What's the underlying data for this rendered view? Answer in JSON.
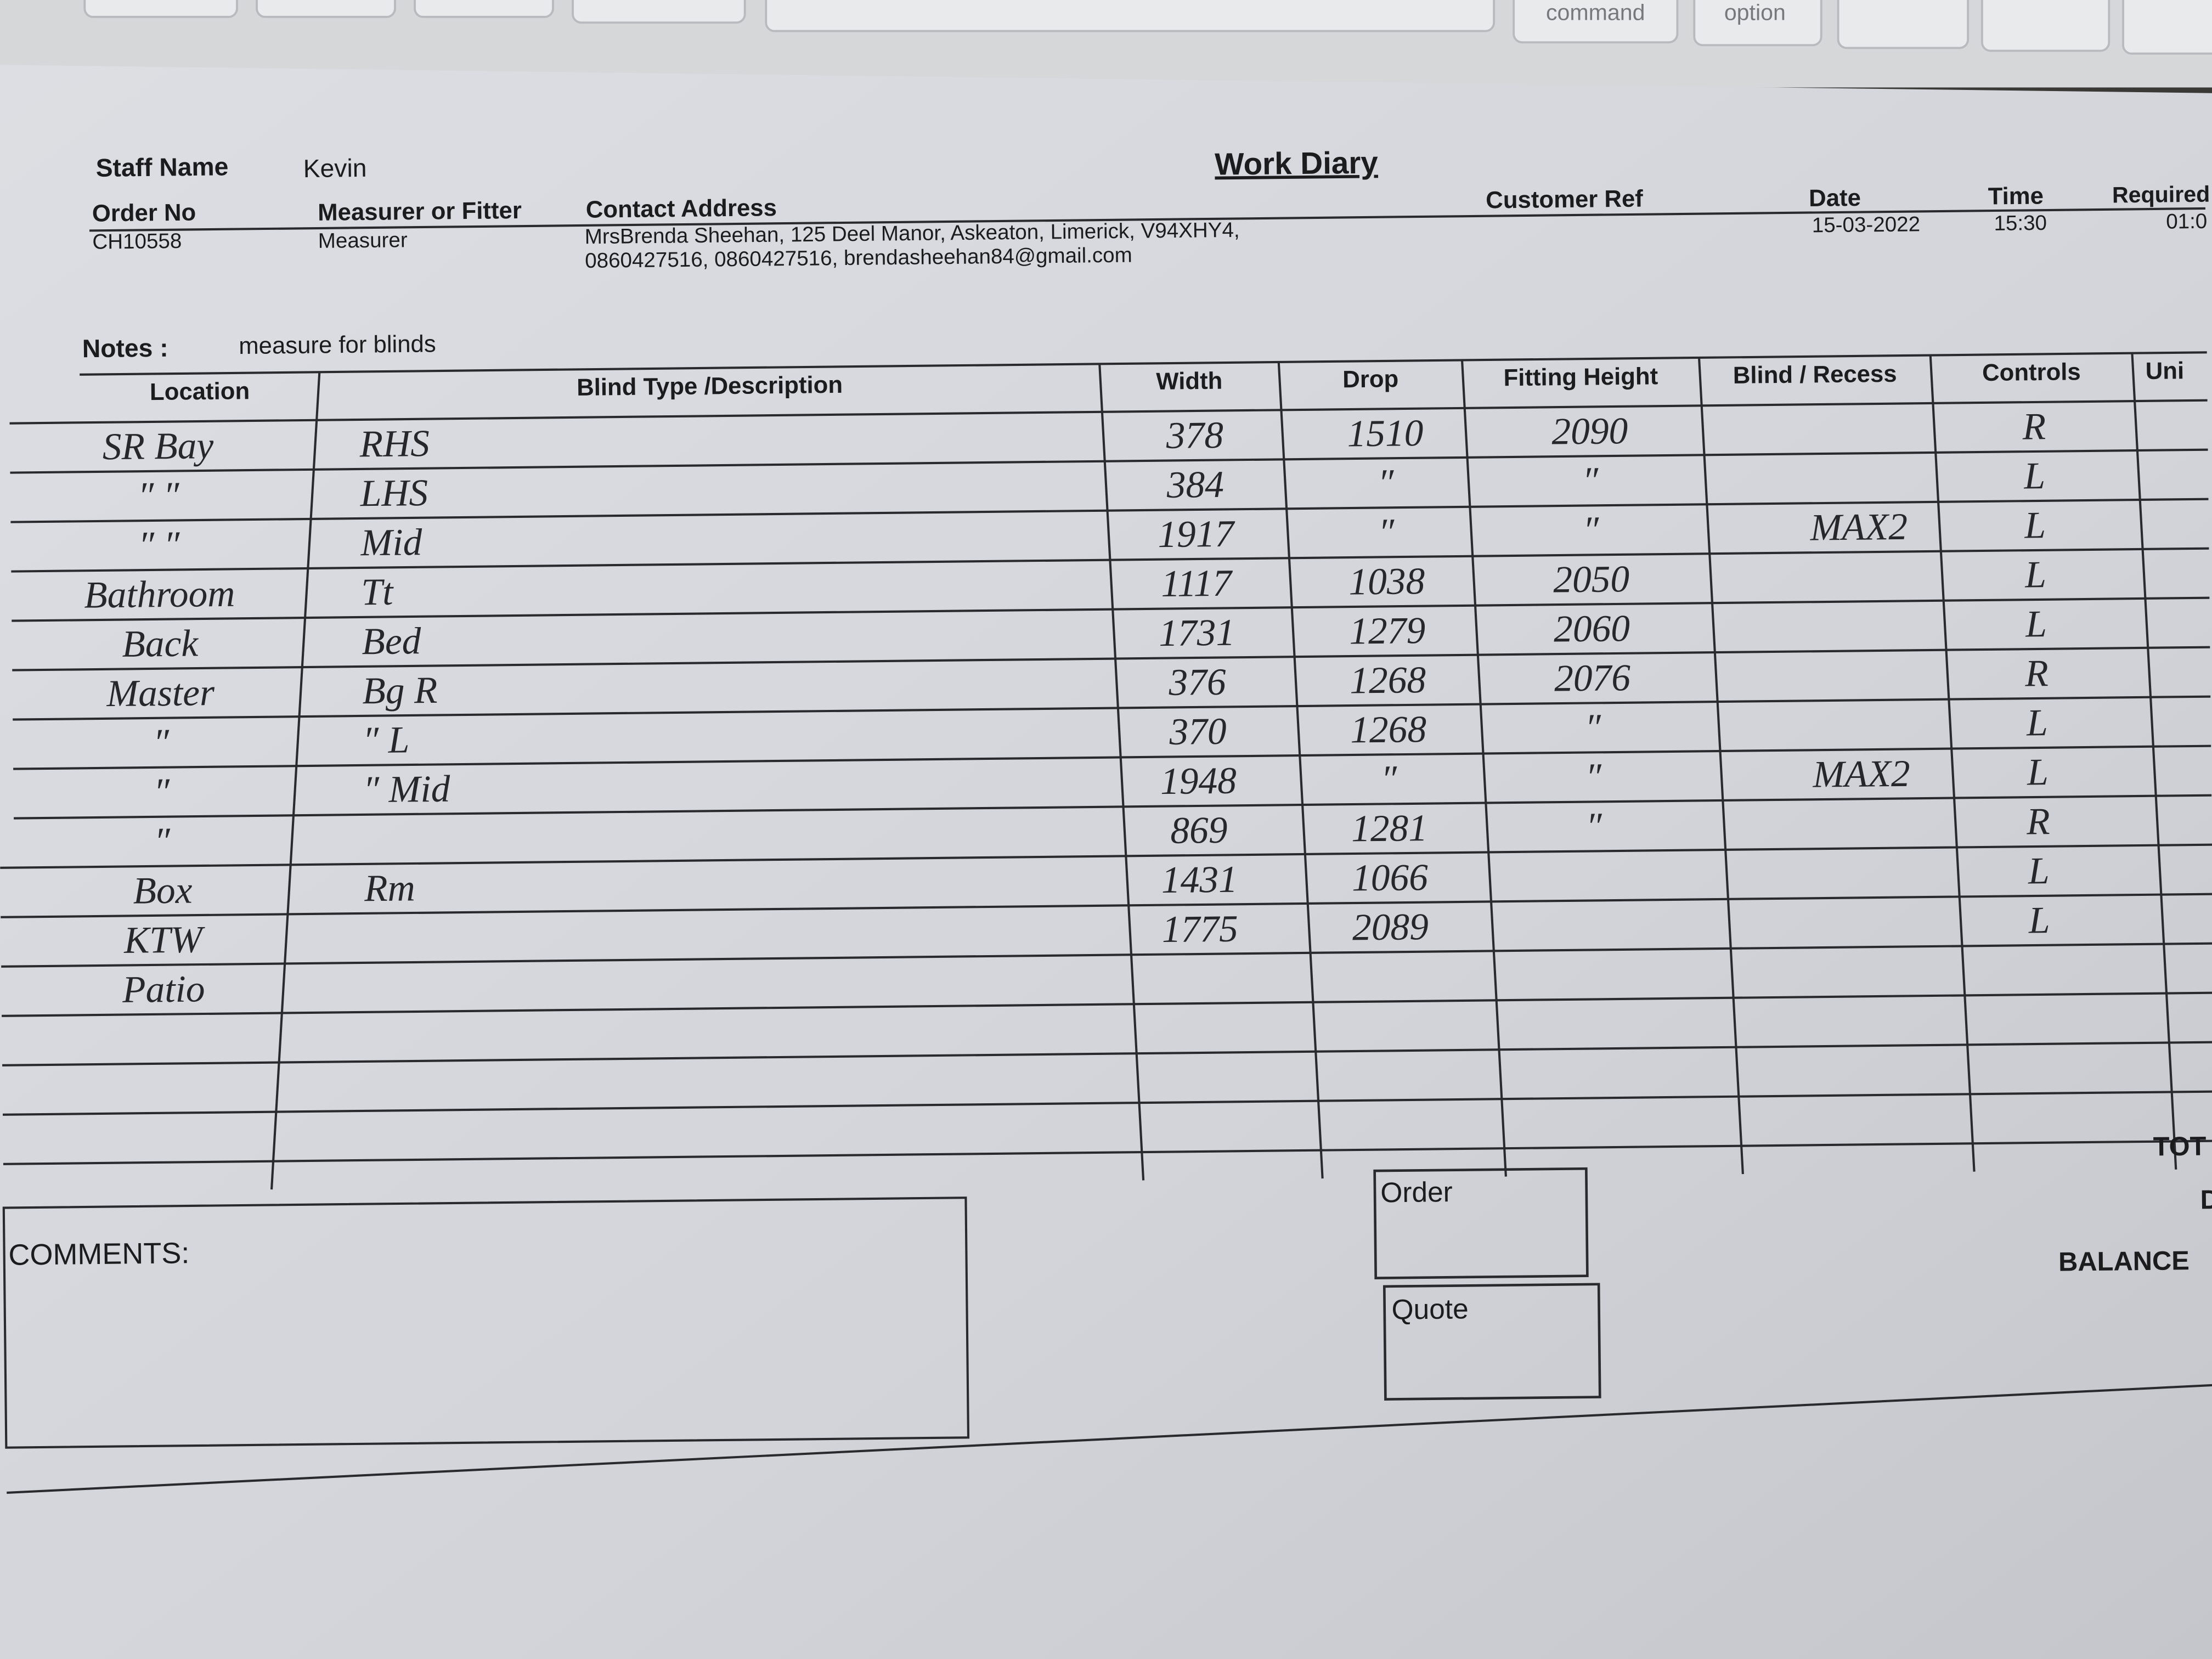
{
  "keyboard": {
    "keys": [
      "command",
      "option"
    ]
  },
  "header": {
    "staff_name_label": "Staff Name",
    "staff_name": "Kevin",
    "title": "Work Diary",
    "order_no": {
      "label": "Order No",
      "value": "CH10558"
    },
    "role": {
      "label": "Measurer or Fitter",
      "value": "Measurer"
    },
    "contact": {
      "label": "Contact Address",
      "lines": [
        "MrsBrenda Sheehan, 125 Deel Manor, Askeaton, Limerick, V94XHY4,",
        "0860427516, 0860427516, brendasheehan84@gmail.com"
      ]
    },
    "customer_ref": {
      "label": "Customer Ref"
    },
    "date": {
      "label": "Date",
      "value": "15-03-2022"
    },
    "time": {
      "label": "Time",
      "value": "15:30"
    },
    "required": {
      "label": "Required",
      "value": "01:0"
    }
  },
  "notes": {
    "label": "Notes :",
    "text": "measure for blinds"
  },
  "table": {
    "headers": [
      "Location",
      "Blind Type /Description",
      "Width",
      "Drop",
      "Fitting Height",
      "Blind / Recess",
      "Controls",
      "Uni"
    ],
    "rows": [
      {
        "location": "SR Bay",
        "type": "RHS",
        "width": "378",
        "drop": "1510",
        "fitting_height": "2090",
        "controls": "R"
      },
      {
        "location": "″ ″",
        "type": "LHS",
        "width": "384",
        "drop": "″",
        "fitting_height": "″",
        "controls": "L"
      },
      {
        "location": "″ ″",
        "type": "Mid",
        "width": "1917",
        "drop": "″",
        "fitting_height": "″",
        "recess": "MAX2",
        "controls": "L"
      },
      {
        "location": "Bathroom",
        "type": "Tt",
        "width": "1117",
        "drop": "1038",
        "fitting_height": "2050",
        "controls": "L"
      },
      {
        "location": "Back",
        "type": "Bed",
        "width": "1731",
        "drop": "1279",
        "fitting_height": "2060",
        "controls": "L"
      },
      {
        "location": "Master",
        "type": "Bg   R",
        "width": "376",
        "drop": "1268",
        "fitting_height": "2076",
        "controls": "R"
      },
      {
        "location": "″",
        "type": "″   L",
        "width": "370",
        "drop": "1268",
        "fitting_height": "″",
        "controls": "L"
      },
      {
        "location": "″",
        "type": "″   Mid",
        "width": "1948",
        "drop": "″",
        "fitting_height": "″",
        "recess": "MAX2",
        "controls": "L"
      },
      {
        "location": "″",
        "width": "869",
        "drop": "1281",
        "fitting_height": "″",
        "controls": "R"
      },
      {
        "location": "Box",
        "type": "Rm",
        "width": "1431",
        "drop": "1066",
        "controls": "L"
      },
      {
        "location": "KTW",
        "width": "1775",
        "drop": "2089",
        "controls": "L"
      },
      {
        "location": "Patio"
      }
    ]
  },
  "footer": {
    "comments": "COMMENTS:",
    "order": "Order",
    "quote": "Quote",
    "totals": [
      "TOT",
      "D",
      "BALANCE"
    ]
  }
}
